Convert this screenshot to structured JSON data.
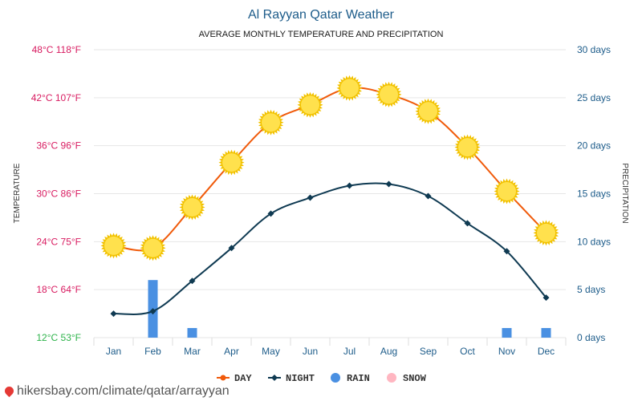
{
  "colors": {
    "day": "#f05a0a",
    "night": "#0f3a52",
    "rain": "#4a90e2",
    "snow": "#ffb6c1",
    "temp_label": "#d81b60",
    "temp_label_min": "#2db34a",
    "precip_label": "#1d5c8a",
    "title": "#1d5c8a",
    "month_label": "#1d5c8a",
    "sun": "#ffe14d",
    "grid": "#e6e6e6"
  },
  "chart_data": {
    "type": "line",
    "title": "Al Rayyan Qatar Weather",
    "subtitle": "AVERAGE MONTHLY TEMPERATURE AND PRECIPITATION",
    "ylabel": "TEMPERATURE",
    "ylabel_right": "PRECIPITATION",
    "categories": [
      "Jan",
      "Feb",
      "Mar",
      "Apr",
      "May",
      "Jun",
      "Jul",
      "Aug",
      "Sep",
      "Oct",
      "Nov",
      "Dec"
    ],
    "ylim": [
      12,
      48
    ],
    "y2lim": [
      0,
      30
    ],
    "y_ticks": [
      "12°C 53°F",
      "18°C 64°F",
      "24°C 75°F",
      "30°C 86°F",
      "36°C 96°F",
      "42°C 107°F",
      "48°C 118°F"
    ],
    "y2_ticks": [
      "0 days",
      "5 days",
      "10 days",
      "15 days",
      "20 days",
      "25 days",
      "30 days"
    ],
    "series": [
      {
        "name": "DAY",
        "kind": "line",
        "marker": "sun",
        "values": [
          23.5,
          23.2,
          28.3,
          33.9,
          38.9,
          41.1,
          43.2,
          42.4,
          40.3,
          35.8,
          30.3,
          25.1
        ]
      },
      {
        "name": "NIGHT",
        "kind": "line",
        "marker": "diamond",
        "values": [
          15.0,
          15.3,
          19.1,
          23.2,
          27.5,
          29.5,
          31.0,
          31.2,
          29.7,
          26.3,
          22.8,
          17.0
        ]
      },
      {
        "name": "RAIN",
        "kind": "bar",
        "axis": "right",
        "values": [
          0,
          6,
          1,
          0,
          0,
          0,
          0,
          0,
          0,
          0,
          1,
          1
        ]
      },
      {
        "name": "SNOW",
        "kind": "bar",
        "axis": "right",
        "values": [
          0,
          0,
          0,
          0,
          0,
          0,
          0,
          0,
          0,
          0,
          0,
          0
        ]
      }
    ],
    "legend": {
      "position": "bottom",
      "items": [
        "DAY",
        "NIGHT",
        "RAIN",
        "SNOW"
      ]
    },
    "grid": true
  },
  "footer": {
    "source": "hikersbay.com/climate/qatar/arrayyan"
  }
}
